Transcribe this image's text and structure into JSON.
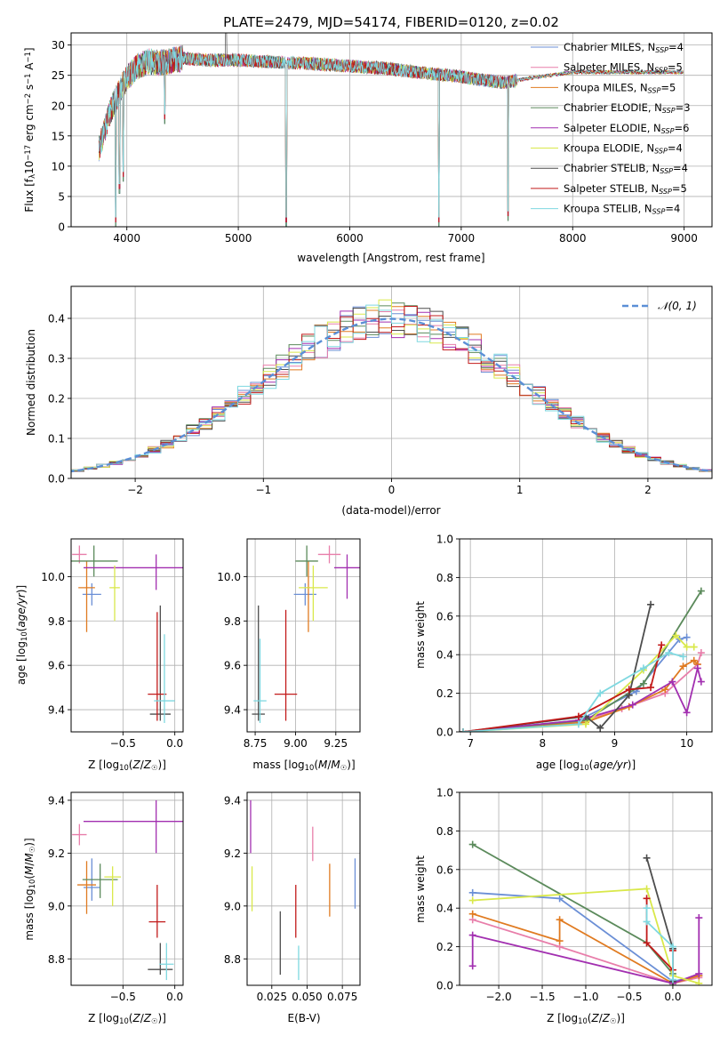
{
  "chart_data": [
    {
      "id": "spectrum",
      "type": "line",
      "title": "PLATE=2479, MJD=54174, FIBERID=0120, z=0.02",
      "xlabel": "wavelength [Angstrom, rest frame]",
      "ylabel": "Flux [f_λ10^-17 erg cm^-2 s^-1 A^-1]",
      "xlim": [
        3500,
        9250
      ],
      "ylim": [
        0,
        32
      ],
      "xticks": [
        4000,
        5000,
        6000,
        7000,
        8000,
        9000
      ],
      "yticks": [
        0,
        5,
        10,
        15,
        20,
        25,
        30
      ],
      "legend_position": "top-right",
      "series": [
        {
          "name": "Chabrier MILES, N_SSP=4",
          "color": "#6b8fd6"
        },
        {
          "name": "Salpeter MILES, N_SSP=5",
          "color": "#e87eaa"
        },
        {
          "name": "Kroupa MILES, N_SSP=5",
          "color": "#e07b21"
        },
        {
          "name": "Chabrier ELODIE, N_SSP=3",
          "color": "#5b8a5b"
        },
        {
          "name": "Salpeter ELODIE, N_SSP=6",
          "color": "#a22fb0"
        },
        {
          "name": "Kroupa ELODIE, N_SSP=4",
          "color": "#d9e84a"
        },
        {
          "name": "Chabrier STELIB, N_SSP=4",
          "color": "#4d4d4d"
        },
        {
          "name": "Salpeter STELIB, N_SSP=5",
          "color": "#c21a1a"
        },
        {
          "name": "Kroupa STELIB, N_SSP=4",
          "color": "#7fd8e0"
        }
      ],
      "continuum": {
        "x": [
          3750,
          3800,
          3850,
          3900,
          3950,
          4000,
          4050,
          4100,
          4200,
          4300,
          4500,
          4700,
          5000,
          5300,
          5600,
          6000,
          6300,
          6600,
          7000,
          7200,
          7400,
          7600,
          8000
        ],
        "y": [
          13,
          16,
          19,
          21,
          23,
          24.5,
          25.5,
          26.5,
          27.3,
          27,
          27.8,
          27.5,
          27.5,
          27.2,
          27,
          26.5,
          26.2,
          25.5,
          24.8,
          24.2,
          23.8,
          24.5,
          25.5
        ]
      },
      "absorption_lines": [
        {
          "x": 3900,
          "y": 0
        },
        {
          "x": 3935,
          "y": 5.5
        },
        {
          "x": 3968,
          "y": 7.5
        },
        {
          "x": 4340,
          "y": 17
        },
        {
          "x": 5430,
          "y": 0
        },
        {
          "x": 6800,
          "y": 0
        },
        {
          "x": 7420,
          "y": 1
        }
      ]
    },
    {
      "id": "residuals",
      "type": "histogram",
      "xlabel": "(data-model)/error",
      "ylabel": "Normed distribution",
      "xlim": [
        -2.5,
        2.5
      ],
      "ylim": [
        0,
        0.48
      ],
      "xticks": [
        -2,
        -1,
        0,
        1,
        2
      ],
      "yticks": [
        0,
        0.1,
        0.2,
        0.3,
        0.4
      ],
      "legend": "𝒩(0, 1)",
      "bin_width": 0.1,
      "gaussian": {
        "mean": 0,
        "sigma": 1,
        "color": "#5b8fd6"
      }
    },
    {
      "id": "age-vs-Z",
      "type": "errorbar",
      "xlabel": "Z [log10(Z/Z☉)]",
      "ylabel": "age [log10(age/yr)]",
      "xlim": [
        -1.0,
        0.08
      ],
      "ylim": [
        9.3,
        10.17
      ],
      "xticks": [
        -0.5,
        0.0
      ],
      "yticks": [
        9.4,
        9.6,
        9.8,
        10.0
      ],
      "points": [
        {
          "x": -0.8,
          "y": 9.92,
          "xerr": 0.09,
          "yerr": [
            0.05,
            0.05
          ],
          "color": "#6b8fd6"
        },
        {
          "x": -0.92,
          "y": 10.1,
          "xerr": 0.07,
          "yerr": [
            0.04,
            0.04
          ],
          "color": "#e87eaa"
        },
        {
          "x": -0.85,
          "y": 9.95,
          "xerr": 0.08,
          "yerr": [
            0.2,
            0.12
          ],
          "color": "#e07b21"
        },
        {
          "x": -0.78,
          "y": 10.07,
          "xerr": 0.23,
          "yerr": [
            0.07,
            0.07
          ],
          "color": "#5b8a5b"
        },
        {
          "x": -0.18,
          "y": 10.04,
          "xerr": 0.7,
          "yerr": [
            0.1,
            0.06
          ],
          "color": "#a22fb0"
        },
        {
          "x": -0.58,
          "y": 9.95,
          "xerr": 0.05,
          "yerr": [
            0.15,
            0.1
          ],
          "color": "#d9e84a"
        },
        {
          "x": -0.14,
          "y": 9.38,
          "xerr": 0.1,
          "yerr": [
            0.03,
            0.49
          ],
          "color": "#4d4d4d"
        },
        {
          "x": -0.17,
          "y": 9.47,
          "xerr": 0.09,
          "yerr": [
            0.12,
            0.37
          ],
          "color": "#c21a1a"
        },
        {
          "x": -0.1,
          "y": 9.44,
          "xerr": 0.1,
          "yerr": [
            0.1,
            0.3
          ],
          "color": "#7fd8e0"
        }
      ]
    },
    {
      "id": "age-vs-mass",
      "type": "errorbar",
      "xlabel": "mass [log10(M/M☉)]",
      "ylabel": "",
      "xlim": [
        8.7,
        9.4
      ],
      "ylim": [
        9.3,
        10.17
      ],
      "xticks": [
        8.75,
        9.0,
        9.25
      ],
      "yticks": [
        9.4,
        9.6,
        9.8,
        10.0
      ],
      "points": [
        {
          "x": 9.06,
          "y": 9.92,
          "xerr": 0.07,
          "yerr": [
            0.05,
            0.05
          ],
          "color": "#6b8fd6"
        },
        {
          "x": 9.21,
          "y": 10.1,
          "xerr": 0.07,
          "yerr": [
            0.04,
            0.04
          ],
          "color": "#e87eaa"
        },
        {
          "x": 9.08,
          "y": 9.95,
          "xerr": 0.01,
          "yerr": [
            0.2,
            0.12
          ],
          "color": "#e07b21"
        },
        {
          "x": 9.07,
          "y": 10.07,
          "xerr": 0.07,
          "yerr": [
            0.07,
            0.07
          ],
          "color": "#5b8a5b"
        },
        {
          "x": 9.32,
          "y": 10.04,
          "xerr": 0.08,
          "yerr": [
            0.14,
            0.06
          ],
          "color": "#a22fb0"
        },
        {
          "x": 9.11,
          "y": 9.95,
          "xerr": 0.09,
          "yerr": [
            0.15,
            0.1
          ],
          "color": "#d9e84a"
        },
        {
          "x": 8.77,
          "y": 9.38,
          "xerr": 0.04,
          "yerr": [
            0.03,
            0.49
          ],
          "color": "#4d4d4d"
        },
        {
          "x": 8.94,
          "y": 9.47,
          "xerr": 0.07,
          "yerr": [
            0.12,
            0.38
          ],
          "color": "#c21a1a"
        },
        {
          "x": 8.78,
          "y": 9.44,
          "xerr": 0.04,
          "yerr": [
            0.1,
            0.28
          ],
          "color": "#7fd8e0"
        }
      ]
    },
    {
      "id": "mass-weight-vs-age",
      "type": "line",
      "xlabel": "age [log10(age/yr)]",
      "ylabel": "mass weight",
      "xlim": [
        6.85,
        10.35
      ],
      "ylim": [
        0,
        1.0
      ],
      "xticks": [
        7,
        8,
        9,
        10
      ],
      "yticks": [
        0.0,
        0.2,
        0.4,
        0.6,
        0.8,
        1.0
      ],
      "series": [
        {
          "color": "#6b8fd6",
          "x": [
            6.9,
            8.5,
            9.3,
            9.9,
            10.0
          ],
          "y": [
            0.0,
            0.06,
            0.21,
            0.48,
            0.49
          ]
        },
        {
          "color": "#e87eaa",
          "x": [
            6.9,
            8.5,
            9.1,
            9.7,
            10.15,
            10.2
          ],
          "y": [
            0.0,
            0.05,
            0.12,
            0.2,
            0.35,
            0.41
          ]
        },
        {
          "color": "#e07b21",
          "x": [
            6.9,
            8.6,
            9.2,
            9.7,
            9.95,
            10.1,
            10.15
          ],
          "y": [
            0.0,
            0.05,
            0.13,
            0.22,
            0.34,
            0.37,
            0.35
          ]
        },
        {
          "color": "#5b8a5b",
          "x": [
            6.9,
            8.6,
            9.4,
            10.2
          ],
          "y": [
            0.0,
            0.06,
            0.25,
            0.73
          ]
        },
        {
          "color": "#a22fb0",
          "x": [
            6.9,
            8.5,
            9.25,
            9.8,
            10.0,
            10.15,
            10.2
          ],
          "y": [
            0.0,
            0.06,
            0.14,
            0.26,
            0.1,
            0.33,
            0.26
          ]
        },
        {
          "color": "#d9e84a",
          "x": [
            6.9,
            8.6,
            9.4,
            9.85,
            10.0,
            10.1
          ],
          "y": [
            0.0,
            0.04,
            0.32,
            0.5,
            0.44,
            0.44
          ]
        },
        {
          "color": "#4d4d4d",
          "x": [
            6.9,
            8.6,
            8.8,
            9.2,
            9.5
          ],
          "y": [
            0.0,
            0.08,
            0.02,
            0.19,
            0.66
          ]
        },
        {
          "color": "#c21a1a",
          "x": [
            6.9,
            8.5,
            9.2,
            9.5,
            9.65
          ],
          "y": [
            0.0,
            0.08,
            0.22,
            0.23,
            0.45
          ]
        },
        {
          "color": "#7fd8e0",
          "x": [
            6.9,
            8.5,
            8.8,
            9.4,
            9.75,
            9.95
          ],
          "y": [
            0.0,
            0.04,
            0.2,
            0.33,
            0.41,
            0.39
          ]
        }
      ]
    },
    {
      "id": "mass-vs-Z",
      "type": "errorbar",
      "xlabel": "Z [log10(Z/Z☉)]",
      "ylabel": "mass [log10(M/M☉)]",
      "xlim": [
        -1.0,
        0.08
      ],
      "ylim": [
        8.7,
        9.43
      ],
      "xticks": [
        -0.5,
        0.0
      ],
      "yticks": [
        8.8,
        9.0,
        9.2,
        9.4
      ],
      "points": [
        {
          "x": -0.8,
          "y": 9.07,
          "xerr": 0.08,
          "yerr": [
            0.05,
            0.11
          ],
          "color": "#6b8fd6"
        },
        {
          "x": -0.92,
          "y": 9.27,
          "xerr": 0.07,
          "yerr": [
            0.04,
            0.04
          ],
          "color": "#e87eaa"
        },
        {
          "x": -0.85,
          "y": 9.08,
          "xerr": 0.09,
          "yerr": [
            0.11,
            0.09
          ],
          "color": "#e07b21"
        },
        {
          "x": -0.72,
          "y": 9.1,
          "xerr": 0.17,
          "yerr": [
            0.07,
            0.06
          ],
          "color": "#5b8a5b"
        },
        {
          "x": -0.18,
          "y": 9.32,
          "xerr": 0.7,
          "yerr": [
            0.12,
            0.08
          ],
          "color": "#a22fb0"
        },
        {
          "x": -0.6,
          "y": 9.11,
          "xerr": 0.08,
          "yerr": [
            0.11,
            0.04
          ],
          "color": "#d9e84a"
        },
        {
          "x": -0.14,
          "y": 8.76,
          "xerr": 0.12,
          "yerr": [
            0.02,
            0.1
          ],
          "color": "#4d4d4d"
        },
        {
          "x": -0.17,
          "y": 8.94,
          "xerr": 0.08,
          "yerr": [
            0.06,
            0.14
          ],
          "color": "#c21a1a"
        },
        {
          "x": -0.08,
          "y": 8.78,
          "xerr": 0.07,
          "yerr": [
            0.06,
            0.08
          ],
          "color": "#7fd8e0"
        }
      ]
    },
    {
      "id": "mass-vs-ebv",
      "type": "errorbar",
      "xlabel": "E(B-V)",
      "ylabel": "",
      "xlim": [
        0.0075,
        0.0875
      ],
      "ylim": [
        8.7,
        9.43
      ],
      "xticks": [
        0.025,
        0.05,
        0.075
      ],
      "yticks": [
        8.8,
        9.0,
        9.2,
        9.4
      ],
      "points": [
        {
          "x": 0.084,
          "y": 9.07,
          "yerr": [
            0.08,
            0.11
          ],
          "color": "#6b8fd6"
        },
        {
          "x": 0.054,
          "y": 9.24,
          "yerr": [
            0.07,
            0.06
          ],
          "color": "#e87eaa"
        },
        {
          "x": 0.066,
          "y": 9.06,
          "yerr": [
            0.1,
            0.1
          ],
          "color": "#e07b21"
        },
        {
          "x": 0.01,
          "y": 9.32,
          "yerr": [
            0.12,
            0.08
          ],
          "color": "#a22fb0"
        },
        {
          "x": 0.011,
          "y": 9.06,
          "yerr": [
            0.08,
            0.09
          ],
          "color": "#d9e84a"
        },
        {
          "x": 0.031,
          "y": 8.86,
          "yerr": [
            0.12,
            0.12
          ],
          "color": "#4d4d4d"
        },
        {
          "x": 0.042,
          "y": 8.98,
          "yerr": [
            0.1,
            0.1
          ],
          "color": "#c21a1a"
        },
        {
          "x": 0.044,
          "y": 8.78,
          "yerr": [
            0.06,
            0.07
          ],
          "color": "#7fd8e0"
        }
      ]
    },
    {
      "id": "mass-weight-vs-Z",
      "type": "line",
      "xlabel": "Z [log10(Z/Z☉)]",
      "ylabel": "mass weight",
      "xlim": [
        -2.45,
        0.45
      ],
      "ylim": [
        0,
        1.0
      ],
      "xticks": [
        -2.0,
        -1.5,
        -1.0,
        -0.5,
        0.0
      ],
      "yticks": [
        0.0,
        0.2,
        0.4,
        0.6,
        0.8,
        1.0
      ],
      "series": [
        {
          "color": "#6b8fd6",
          "x": [
            -2.3,
            -1.3,
            0.0,
            0.3
          ],
          "y": [
            0.48,
            0.45,
            0.02,
            0.05
          ]
        },
        {
          "color": "#e87eaa",
          "x": [
            -2.3,
            -1.3,
            0.0,
            0.3
          ],
          "y": [
            0.34,
            0.2,
            0.01,
            0.04
          ]
        },
        {
          "color": "#e07b21",
          "x": [
            -2.3,
            -1.3,
            -1.3,
            0.0,
            0.3
          ],
          "y": [
            0.37,
            0.23,
            0.34,
            0.01,
            0.05
          ]
        },
        {
          "color": "#5b8a5b",
          "x": [
            -2.3,
            -0.3,
            0.0,
            0.0
          ],
          "y": [
            0.73,
            0.22,
            0.06,
            0.0
          ]
        },
        {
          "color": "#a22fb0",
          "x": [
            -2.3,
            -2.3,
            0.0,
            0.3,
            0.3
          ],
          "y": [
            0.1,
            0.26,
            0.01,
            0.06,
            0.35
          ]
        },
        {
          "color": "#d9e84a",
          "x": [
            -2.3,
            -0.3,
            0.0,
            0.3
          ],
          "y": [
            0.44,
            0.5,
            0.05,
            0.01
          ]
        },
        {
          "color": "#4d4d4d",
          "x": [
            -0.3,
            0.0,
            0.0
          ],
          "y": [
            0.66,
            0.19,
            0.02
          ]
        },
        {
          "color": "#c21a1a",
          "x": [
            -0.3,
            -0.3,
            0.0,
            0.0
          ],
          "y": [
            0.45,
            0.22,
            0.08,
            0.18
          ]
        },
        {
          "color": "#7fd8e0",
          "x": [
            -0.3,
            -0.3,
            0.0,
            0.0
          ],
          "y": [
            0.4,
            0.33,
            0.2,
            0.03
          ]
        }
      ]
    }
  ]
}
